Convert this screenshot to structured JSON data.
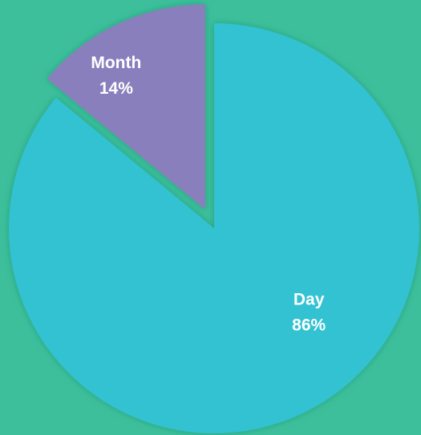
{
  "chart_data": {
    "type": "pie",
    "categories": [
      "Day",
      "Month"
    ],
    "values": [
      86,
      14
    ],
    "value_labels": [
      "86%",
      "14%"
    ],
    "colors": [
      "#31c2d1",
      "#8a7fbd"
    ],
    "explode": [
      false,
      true
    ]
  }
}
